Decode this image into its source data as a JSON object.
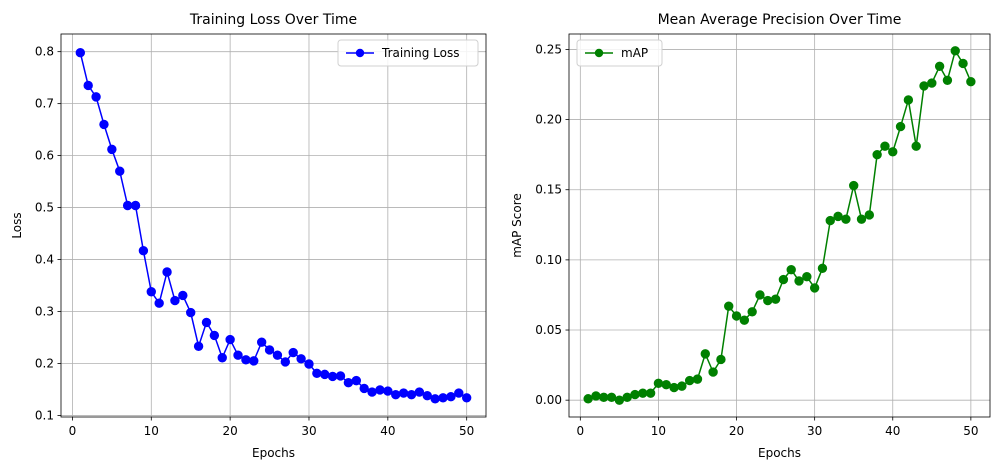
{
  "chart_data": [
    {
      "type": "line",
      "title": "Training Loss Over Time",
      "xlabel": "Epochs",
      "ylabel": "Loss",
      "xlim": [
        -1.45,
        52.45
      ],
      "ylim": [
        0.097,
        0.834
      ],
      "xticks": [
        0,
        10,
        20,
        30,
        40,
        50
      ],
      "yticks": [
        0.1,
        0.2,
        0.3,
        0.4,
        0.5,
        0.6,
        0.7,
        0.8
      ],
      "xtick_labels": [
        "0",
        "10",
        "20",
        "30",
        "40",
        "50"
      ],
      "ytick_labels": [
        "0.1",
        "0.2",
        "0.3",
        "0.4",
        "0.5",
        "0.6",
        "0.7",
        "0.8"
      ],
      "grid": true,
      "legend": "upper right",
      "series": [
        {
          "name": "Training Loss",
          "color": "#0000ff",
          "marker": "circle",
          "x": [
            1,
            2,
            3,
            4,
            5,
            6,
            7,
            8,
            9,
            10,
            11,
            12,
            13,
            14,
            15,
            16,
            17,
            18,
            19,
            20,
            21,
            22,
            23,
            24,
            25,
            26,
            27,
            28,
            29,
            30,
            31,
            32,
            33,
            34,
            35,
            36,
            37,
            38,
            39,
            40,
            41,
            42,
            43,
            44,
            45,
            46,
            47,
            48,
            49,
            50
          ],
          "y": [
            0.798,
            0.735,
            0.713,
            0.66,
            0.612,
            0.57,
            0.504,
            0.504,
            0.417,
            0.338,
            0.316,
            0.376,
            0.321,
            0.331,
            0.298,
            0.233,
            0.279,
            0.254,
            0.211,
            0.246,
            0.216,
            0.207,
            0.205,
            0.241,
            0.226,
            0.216,
            0.203,
            0.221,
            0.209,
            0.199,
            0.181,
            0.179,
            0.175,
            0.176,
            0.163,
            0.167,
            0.152,
            0.145,
            0.149,
            0.147,
            0.14,
            0.143,
            0.14,
            0.145,
            0.138,
            0.132,
            0.134,
            0.136,
            0.143,
            0.134
          ]
        }
      ]
    },
    {
      "type": "line",
      "title": "Mean Average Precision Over Time",
      "xlabel": "Epochs",
      "ylabel": "mAP Score",
      "xlim": [
        -1.45,
        52.45
      ],
      "ylim": [
        -0.012,
        0.261
      ],
      "xticks": [
        0,
        10,
        20,
        30,
        40,
        50
      ],
      "yticks": [
        0.0,
        0.05,
        0.1,
        0.15,
        0.2,
        0.25
      ],
      "xtick_labels": [
        "0",
        "10",
        "20",
        "30",
        "40",
        "50"
      ],
      "ytick_labels": [
        "0.00",
        "0.05",
        "0.10",
        "0.15",
        "0.20",
        "0.25"
      ],
      "grid": true,
      "legend": "upper left",
      "series": [
        {
          "name": "mAP",
          "color": "#008000",
          "marker": "circle",
          "x": [
            1,
            2,
            3,
            4,
            5,
            6,
            7,
            8,
            9,
            10,
            11,
            12,
            13,
            14,
            15,
            16,
            17,
            18,
            19,
            20,
            21,
            22,
            23,
            24,
            25,
            26,
            27,
            28,
            29,
            30,
            31,
            32,
            33,
            34,
            35,
            36,
            37,
            38,
            39,
            40,
            41,
            42,
            43,
            44,
            45,
            46,
            47,
            48,
            49,
            50
          ],
          "y": [
            0.001,
            0.003,
            0.002,
            0.002,
            0.0,
            0.002,
            0.004,
            0.005,
            0.005,
            0.012,
            0.011,
            0.009,
            0.01,
            0.014,
            0.015,
            0.033,
            0.02,
            0.029,
            0.067,
            0.06,
            0.057,
            0.063,
            0.075,
            0.071,
            0.072,
            0.086,
            0.093,
            0.085,
            0.088,
            0.08,
            0.094,
            0.128,
            0.131,
            0.129,
            0.153,
            0.129,
            0.132,
            0.175,
            0.181,
            0.177,
            0.195,
            0.214,
            0.181,
            0.224,
            0.226,
            0.238,
            0.228,
            0.249,
            0.24,
            0.227
          ]
        }
      ]
    }
  ]
}
